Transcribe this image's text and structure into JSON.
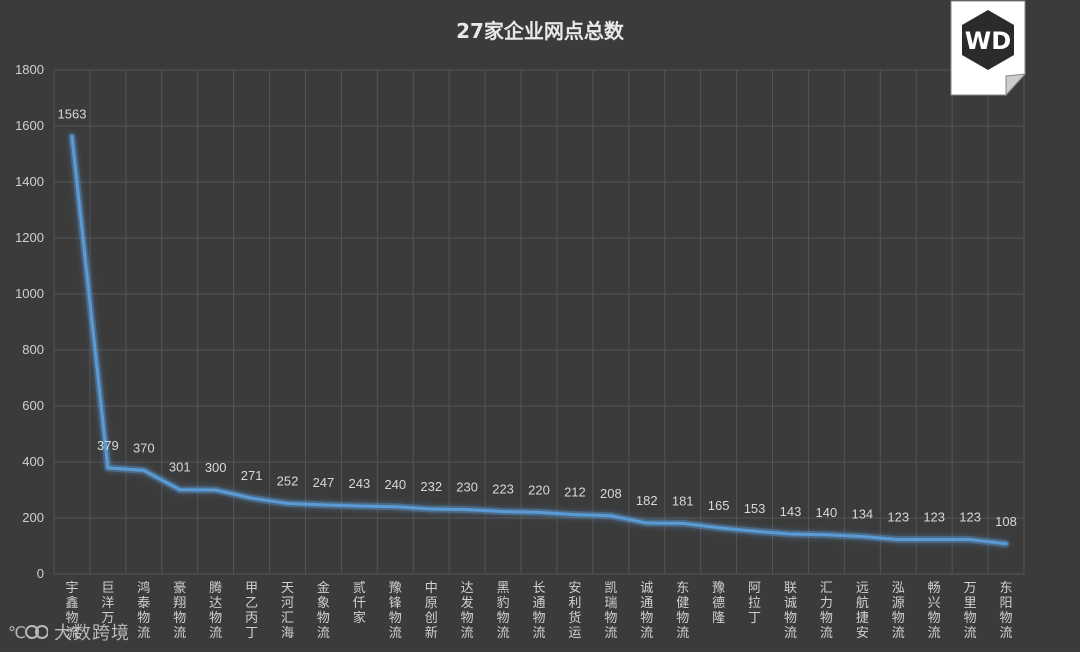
{
  "chart_data": {
    "type": "line",
    "title": "27家企业网点总数",
    "categories": [
      "宇鑫物流",
      "巨洋万",
      "鸿泰物流",
      "豪翔物流",
      "腾达物流",
      "甲乙丙丁",
      "天河汇海",
      "金象物流",
      "贰仟家",
      "豫锋物流",
      "中原创新",
      "达发物流",
      "黑豹物流",
      "长通物流",
      "安利货运",
      "凯瑞物流",
      "诚通物流",
      "东健物流",
      "豫德隆",
      "阿拉丁",
      "联诚物流",
      "汇力物流",
      "远航捷安",
      "泓源物流",
      "畅兴物流",
      "万里物流",
      "东阳物流"
    ],
    "series": [
      {
        "values": [
          1563,
          379,
          370,
          301,
          300,
          271,
          252,
          247,
          243,
          240,
          232,
          230,
          223,
          220,
          212,
          208,
          182,
          181,
          165,
          153,
          143,
          140,
          134,
          123,
          123,
          123,
          108
        ]
      }
    ],
    "ylim": [
      0,
      1800
    ],
    "yticks": [
      0,
      200,
      400,
      600,
      800,
      1000,
      1200,
      1400,
      1600,
      1800
    ],
    "grid": true,
    "data_labels": true,
    "line_color": "#5b9bd5"
  },
  "logo": {
    "text": "WD"
  },
  "watermark": {
    "text": "大数跨境"
  }
}
